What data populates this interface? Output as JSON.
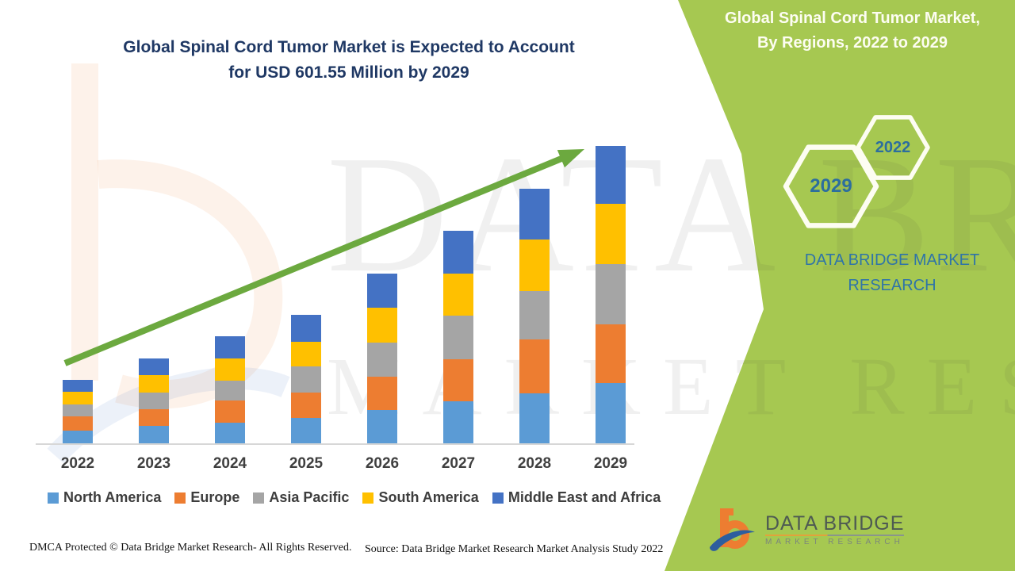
{
  "header": {
    "title_line1": "Global Spinal Cord Tumor Market is Expected to Account",
    "title_line2": "for USD 601.55 Million by 2029"
  },
  "side_panel": {
    "title_line1": "Global Spinal Cord Tumor Market,",
    "title_line2": "By Regions, 2022 to 2029",
    "hexagon_big_label": "2029",
    "hexagon_small_label": "2022",
    "brand_line1": "DATA BRIDGE MARKET",
    "brand_line2": "RESEARCH"
  },
  "watermark": {
    "line1": "DATA BRIDGE",
    "line2": "MARKET RESEARCH"
  },
  "colors": {
    "panel_green": "#A6C851",
    "arrow_green": "#6CA93F",
    "title_navy": "#1F3864",
    "hex_text_blue": "#2C6E9E"
  },
  "chart_data": {
    "type": "bar",
    "stacked": true,
    "title": "Global Spinal Cord Tumor Market is Expected to Account for USD 601.55 Million by 2029",
    "unit": "USD Million",
    "categories": [
      "2022",
      "2023",
      "2024",
      "2025",
      "2026",
      "2027",
      "2028",
      "2029"
    ],
    "series": [
      {
        "name": "North America",
        "color": "#5B9BD5",
        "values": [
          25.7,
          35.3,
          41.7,
          51.3,
          67.4,
          85.0,
          101.1,
          121.9
        ]
      },
      {
        "name": "Europe",
        "color": "#ED7D31",
        "values": [
          28.9,
          33.7,
          44.9,
          51.3,
          67.4,
          85.0,
          109.1,
          118.7
        ]
      },
      {
        "name": "Asia Pacific",
        "color": "#A5A5A5",
        "values": [
          24.1,
          33.7,
          40.1,
          52.9,
          69.0,
          88.2,
          97.9,
          121.9
        ]
      },
      {
        "name": "South America",
        "color": "#FFC000",
        "values": [
          25.7,
          35.3,
          44.9,
          49.7,
          70.6,
          85.0,
          104.3,
          121.9
        ]
      },
      {
        "name": "Middle East and Africa",
        "color": "#4472C4",
        "values": [
          24.1,
          33.7,
          44.9,
          54.5,
          69.0,
          86.6,
          102.7,
          117.1
        ]
      }
    ],
    "totals_by_year": [
      128.5,
      171.7,
      216.5,
      259.7,
      343.4,
      429.8,
      515.1,
      601.5
    ],
    "xlabel": "",
    "ylabel": "",
    "ylim": [
      0,
      650
    ],
    "grid": false,
    "y_axis_shown": false,
    "legend_position": "bottom",
    "annotations": [
      "upward green trend arrow from 2022 to 2029"
    ]
  },
  "footer": {
    "left": "DMCA Protected © Data Bridge Market Research- All Rights Reserved.",
    "right": "Source: Data Bridge Market Research Market Analysis Study 2022"
  },
  "logo": {
    "line1": "DATA BRIDGE",
    "line2": "MARKET RESEARCH"
  }
}
